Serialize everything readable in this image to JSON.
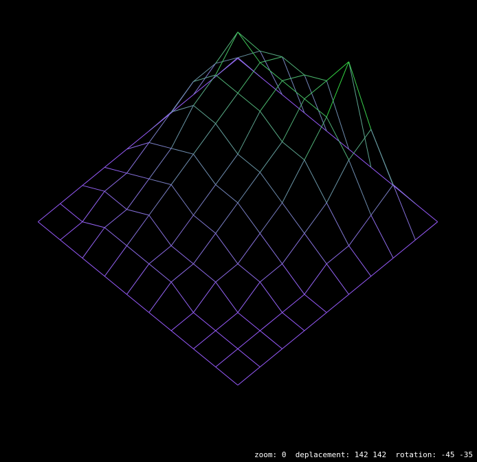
{
  "status": {
    "zoom_label": "zoom:",
    "zoom": "0",
    "deplacement_label": "deplacement:",
    "deplacement": "142 142",
    "rotation_label": "rotation:",
    "rotation": "-45 -35"
  },
  "colors": {
    "low": "#9a5cff",
    "high": "#22ee22",
    "background": "#000000"
  },
  "heightmap": [
    [
      0,
      0,
      0,
      0,
      0,
      0,
      0,
      0,
      0,
      0
    ],
    [
      0,
      3,
      5,
      6,
      6,
      7,
      10,
      6,
      3,
      0
    ],
    [
      0,
      4,
      8,
      7,
      7,
      7,
      7,
      5,
      2,
      0
    ],
    [
      0,
      4,
      6,
      6,
      6,
      5,
      5,
      3,
      1,
      0
    ],
    [
      0,
      3,
      5,
      5,
      4,
      4,
      3,
      2,
      1,
      0
    ],
    [
      0,
      2,
      3,
      4,
      3,
      3,
      2,
      1,
      0,
      0
    ],
    [
      0,
      1,
      2,
      3,
      2,
      2,
      1,
      1,
      0,
      0
    ],
    [
      0,
      1,
      1,
      2,
      1,
      1,
      1,
      0,
      0,
      0
    ],
    [
      0,
      0,
      1,
      1,
      1,
      1,
      0,
      0,
      0,
      0
    ],
    [
      0,
      0,
      0,
      0,
      0,
      0,
      0,
      0,
      0,
      0
    ]
  ]
}
